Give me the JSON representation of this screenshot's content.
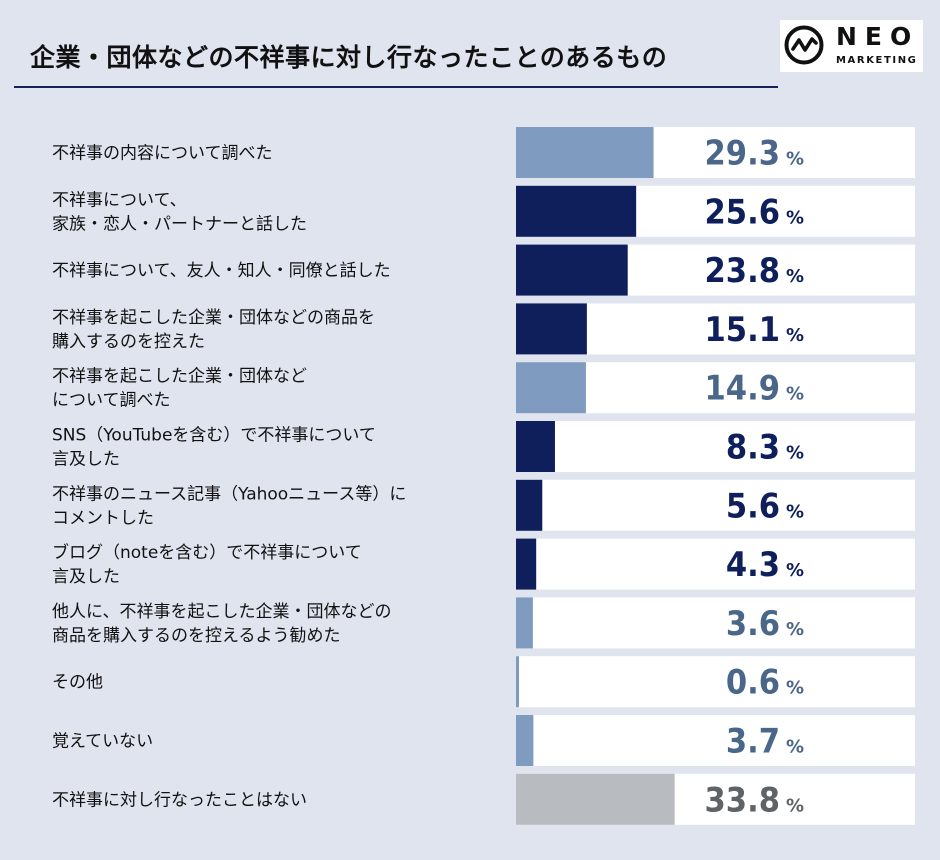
{
  "title": "企業・団体などの不祥事に対し行なったことのあるもの",
  "logo": {
    "name": "NEO",
    "sub": "MARKETING"
  },
  "colors": {
    "dark": "#0f1f5c",
    "light": "#7f9bbf",
    "gray": "#b8bbc0",
    "gray_text": "#5f6266",
    "light_text": "#4a6688"
  },
  "chart_data": {
    "type": "bar",
    "orientation": "horizontal",
    "unit": "%",
    "categories": [
      [
        "不祥事の内容について調べた"
      ],
      [
        "不祥事について、",
        "家族・恋人・パートナーと話した"
      ],
      [
        "不祥事について、友人・知人・同僚と話した"
      ],
      [
        "不祥事を起こした企業・団体などの商品を",
        "購入するのを控えた"
      ],
      [
        "不祥事を起こした企業・団体など",
        "について調べた"
      ],
      [
        "SNS（YouTubeを含む）で不祥事について",
        "言及した"
      ],
      [
        "不祥事のニュース記事（Yahooニュース等）に",
        "コメントした"
      ],
      [
        "ブログ（noteを含む）で不祥事について",
        "言及した"
      ],
      [
        "他人に、不祥事を起こした企業・団体などの",
        "商品を購入するのを控えるよう勧めた"
      ],
      [
        "その他"
      ],
      [
        "覚えていない"
      ],
      [
        "不祥事に対し行なったことはない"
      ]
    ],
    "values": [
      29.3,
      25.6,
      23.8,
      15.1,
      14.9,
      8.3,
      5.6,
      4.3,
      3.6,
      0.6,
      3.7,
      33.8
    ],
    "value_labels": [
      "29.3",
      "25.6",
      "23.8",
      "15.1",
      "14.9",
      "8.3",
      "5.6",
      "4.3",
      "3.6",
      "0.6",
      "3.7",
      "33.8"
    ],
    "bar_style": [
      "light",
      "dark",
      "dark",
      "dark",
      "light",
      "dark",
      "dark",
      "dark",
      "light",
      "light",
      "light",
      "gray"
    ],
    "xlim": [
      0,
      85
    ]
  }
}
